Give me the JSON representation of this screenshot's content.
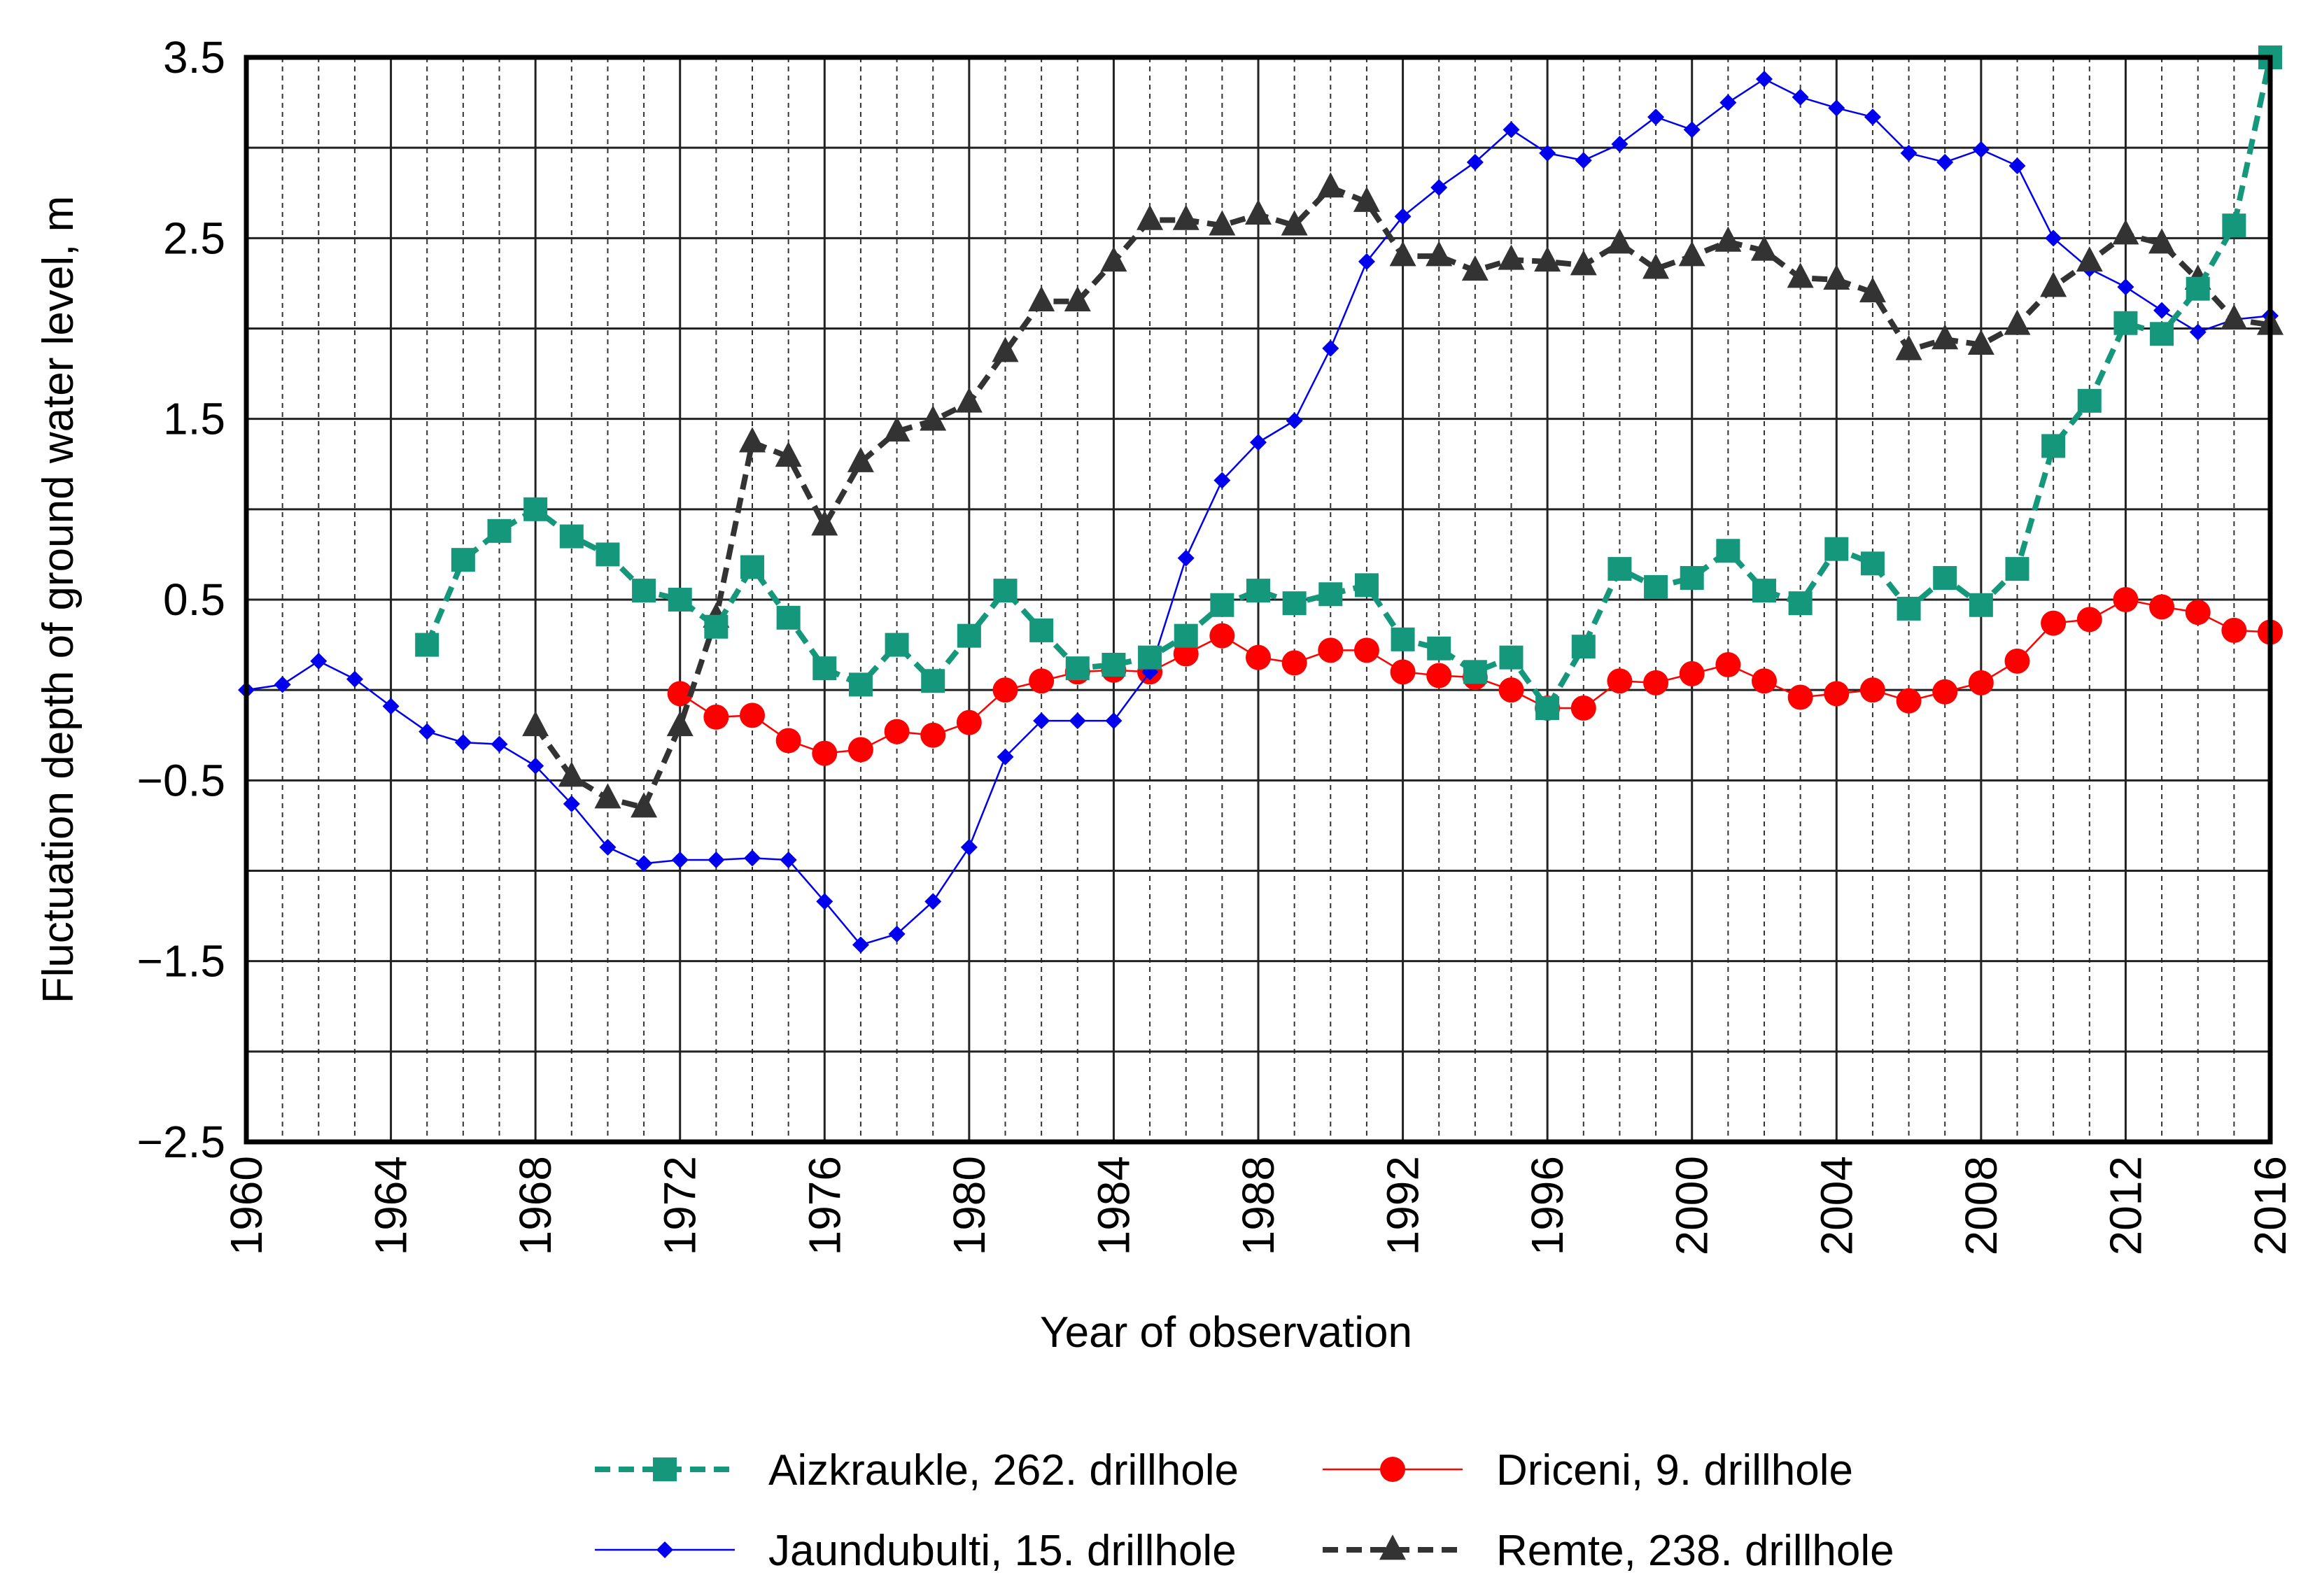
{
  "chart_data": {
    "type": "line",
    "title": "",
    "xlabel": "Year of observation",
    "ylabel": "Fluctuation depth of ground water level, m",
    "xlim": [
      1960,
      2016
    ],
    "ylim": [
      -2.5,
      3.5
    ],
    "x_ticks": [
      1960,
      1964,
      1968,
      1972,
      1976,
      1980,
      1984,
      1988,
      1992,
      1996,
      2000,
      2004,
      2008,
      2012,
      2016
    ],
    "x_tick_labels": [
      "1960",
      "1964",
      "1968",
      "1972",
      "1976",
      "1980",
      "1984",
      "1988",
      "1992",
      "1996",
      "2000",
      "2004",
      "2008",
      "2012",
      "2016"
    ],
    "y_ticks": [
      3.5,
      2.5,
      1.5,
      0.5,
      -0.5,
      -1.5,
      -2.5
    ],
    "y_tick_labels": [
      "3.5",
      "2.5",
      "1.5",
      "0.5",
      "−0.5",
      "−1.5",
      "−2.5"
    ],
    "grid": true,
    "legend_position": "bottom",
    "series": [
      {
        "name": "Aizkraukle, 262. drillhole",
        "color": "#14977a",
        "line_style": "dashed",
        "marker": "square",
        "x": [
          1965,
          1966,
          1967,
          1968,
          1969,
          1970,
          1971,
          1972,
          1973,
          1974,
          1975,
          1976,
          1977,
          1978,
          1979,
          1980,
          1981,
          1982,
          1983,
          1984,
          1985,
          1986,
          1987,
          1988,
          1989,
          1990,
          1991,
          1992,
          1993,
          1994,
          1995,
          1996,
          1997,
          1998,
          1999,
          2000,
          2001,
          2002,
          2003,
          2004,
          2005,
          2006,
          2007,
          2008,
          2009,
          2010,
          2011,
          2012,
          2013,
          2014,
          2015,
          2016
        ],
        "values": [
          0.25,
          0.72,
          0.88,
          1.0,
          0.85,
          0.75,
          0.55,
          0.5,
          0.35,
          0.68,
          0.4,
          0.12,
          0.03,
          0.25,
          0.05,
          0.3,
          0.55,
          0.33,
          0.12,
          0.14,
          0.18,
          0.3,
          0.47,
          0.55,
          0.48,
          0.53,
          0.58,
          0.28,
          0.23,
          0.1,
          0.18,
          -0.1,
          0.24,
          0.67,
          0.57,
          0.62,
          0.77,
          0.55,
          0.48,
          0.78,
          0.7,
          0.45,
          0.62,
          0.47,
          0.67,
          1.35,
          1.6,
          2.03,
          1.97,
          2.22,
          2.57,
          3.5
        ]
      },
      {
        "name": "Driceni, 9. drillhole",
        "color": "#ff0000",
        "line_style": "solid",
        "marker": "circle",
        "x": [
          1972,
          1973,
          1974,
          1975,
          1976,
          1977,
          1978,
          1979,
          1980,
          1981,
          1982,
          1983,
          1984,
          1985,
          1986,
          1987,
          1988,
          1989,
          1990,
          1991,
          1992,
          1993,
          1994,
          1995,
          1996,
          1997,
          1998,
          1999,
          2000,
          2001,
          2002,
          2003,
          2004,
          2005,
          2006,
          2007,
          2008,
          2009,
          2010,
          2011,
          2012,
          2013,
          2014,
          2015,
          2016
        ],
        "values": [
          -0.02,
          -0.15,
          -0.14,
          -0.28,
          -0.35,
          -0.33,
          -0.23,
          -0.25,
          -0.18,
          0.0,
          0.05,
          0.1,
          0.11,
          0.1,
          0.2,
          0.3,
          0.18,
          0.15,
          0.22,
          0.22,
          0.1,
          0.08,
          0.07,
          0.0,
          -0.1,
          -0.1,
          0.05,
          0.04,
          0.09,
          0.14,
          0.05,
          -0.04,
          -0.02,
          0.0,
          -0.06,
          -0.01,
          0.04,
          0.16,
          0.37,
          0.39,
          0.5,
          0.46,
          0.43,
          0.33,
          0.32
        ]
      },
      {
        "name": "Jaundubulti, 15. drillhole",
        "color": "#0000ee",
        "line_style": "solid",
        "marker": "diamond",
        "x": [
          1960,
          1961,
          1962,
          1963,
          1964,
          1965,
          1966,
          1967,
          1968,
          1969,
          1970,
          1971,
          1972,
          1973,
          1974,
          1975,
          1976,
          1977,
          1978,
          1979,
          1980,
          1981,
          1982,
          1983,
          1984,
          1985,
          1986,
          1987,
          1988,
          1989,
          1990,
          1991,
          1992,
          1993,
          1994,
          1995,
          1996,
          1997,
          1998,
          1999,
          2000,
          2001,
          2002,
          2003,
          2004,
          2005,
          2006,
          2007,
          2008,
          2009,
          2010,
          2011,
          2012,
          2013,
          2014,
          2015,
          2016
        ],
        "values": [
          0.0,
          0.03,
          0.16,
          0.06,
          -0.09,
          -0.23,
          -0.29,
          -0.3,
          -0.42,
          -0.63,
          -0.87,
          -0.96,
          -0.94,
          -0.94,
          -0.93,
          -0.94,
          -1.17,
          -1.41,
          -1.35,
          -1.17,
          -0.87,
          -0.37,
          -0.17,
          -0.17,
          -0.17,
          0.1,
          0.73,
          1.16,
          1.37,
          1.49,
          1.89,
          2.37,
          2.62,
          2.78,
          2.92,
          3.1,
          2.97,
          2.93,
          3.02,
          3.17,
          3.1,
          3.25,
          3.38,
          3.28,
          3.22,
          3.17,
          2.97,
          2.92,
          2.99,
          2.9,
          2.5,
          2.33,
          2.23,
          2.1,
          1.98,
          2.05,
          2.07
        ]
      },
      {
        "name": "Remte, 238. drillhole",
        "color": "#333333",
        "line_style": "dashed",
        "marker": "triangle",
        "x": [
          1968,
          1969,
          1970,
          1971,
          1972,
          1973,
          1974,
          1975,
          1976,
          1977,
          1978,
          1979,
          1980,
          1981,
          1982,
          1983,
          1984,
          1985,
          1986,
          1987,
          1988,
          1989,
          1990,
          1991,
          1992,
          1993,
          1994,
          1995,
          1996,
          1997,
          1998,
          1999,
          2000,
          2001,
          2002,
          2003,
          2004,
          2005,
          2006,
          2007,
          2008,
          2009,
          2010,
          2011,
          2012,
          2013,
          2014,
          2015,
          2016
        ],
        "values": [
          -0.2,
          -0.48,
          -0.6,
          -0.65,
          -0.2,
          0.4,
          1.37,
          1.29,
          0.91,
          1.26,
          1.43,
          1.49,
          1.59,
          1.87,
          2.15,
          2.15,
          2.37,
          2.6,
          2.6,
          2.57,
          2.63,
          2.57,
          2.78,
          2.7,
          2.4,
          2.4,
          2.32,
          2.38,
          2.37,
          2.35,
          2.47,
          2.33,
          2.4,
          2.48,
          2.43,
          2.28,
          2.27,
          2.2,
          1.88,
          1.94,
          1.91,
          2.02,
          2.23,
          2.37,
          2.52,
          2.47,
          2.27,
          2.05,
          2.02
        ]
      }
    ]
  }
}
